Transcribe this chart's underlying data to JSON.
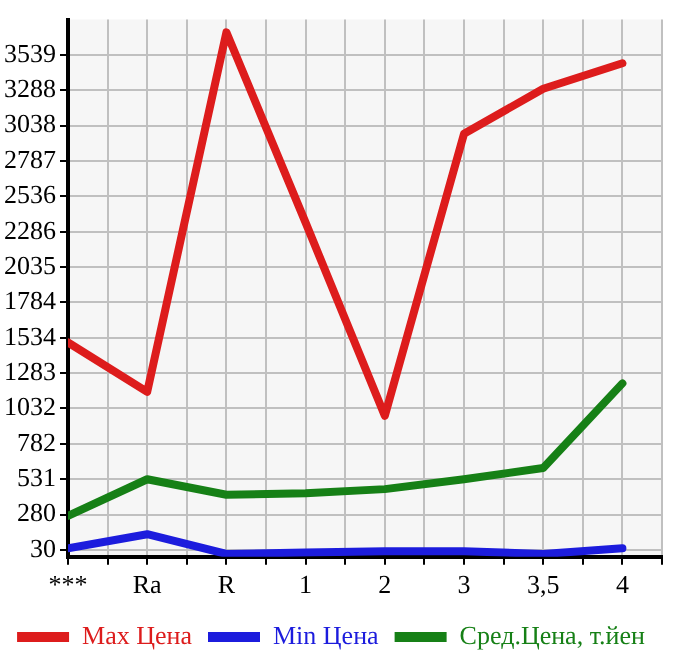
{
  "chart_data": {
    "type": "line",
    "categories": [
      "***",
      "Ra",
      "R",
      "1",
      "2",
      "3",
      "3,5",
      "4"
    ],
    "series": [
      {
        "name": "Max Цена",
        "color": "#dd1c1c",
        "values": [
          1500,
          1150,
          3700,
          2350,
          980,
          2980,
          3300,
          3480
        ]
      },
      {
        "name": "Min Цена",
        "color": "#1c1cdd",
        "values": [
          40,
          140,
          0,
          10,
          20,
          20,
          0,
          40
        ]
      },
      {
        "name": "Сред.Цена, т.йен",
        "color": "#168016",
        "values": [
          270,
          530,
          420,
          430,
          460,
          530,
          610,
          1210
        ]
      }
    ],
    "ylim": [
      -20,
      3790
    ],
    "yticks": [
      30,
      280,
      531,
      782,
      1032,
      1283,
      1534,
      1784,
      2035,
      2286,
      2536,
      2787,
      3038,
      3288,
      3539
    ],
    "grid": true,
    "legend": "bottom",
    "marker": "none",
    "line_style": "solid"
  }
}
